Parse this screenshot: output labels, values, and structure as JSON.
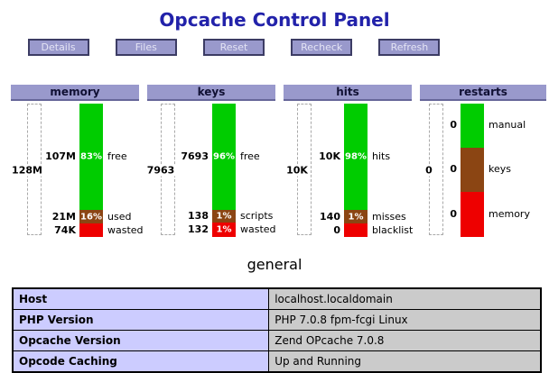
{
  "title": "Opcache Control Panel",
  "toolbar": {
    "buttons": [
      "Details",
      "Files",
      "Reset",
      "Recheck",
      "Refresh"
    ]
  },
  "colors": {
    "green": "#00cc00",
    "brown": "#8b4513",
    "red": "#ee0000",
    "panel_purple": "#9999cc",
    "title_blue": "#2222aa",
    "table_label_bg": "#ccccff",
    "table_value_bg": "#cbcbcb"
  },
  "chart_data": [
    {
      "type": "bar",
      "title": "memory",
      "scale_total": "128M",
      "segments": [
        {
          "value": "107M",
          "pct": "83%",
          "label": "free",
          "color": "green",
          "height_pct": 80
        },
        {
          "value": "21M",
          "pct": "16%",
          "label": "used",
          "color": "brown",
          "height_pct": 10
        },
        {
          "value": "74K",
          "pct": "",
          "label": "wasted",
          "color": "red",
          "height_pct": 10
        }
      ]
    },
    {
      "type": "bar",
      "title": "keys",
      "scale_total": "7963",
      "segments": [
        {
          "value": "7693",
          "pct": "96%",
          "label": "free",
          "color": "green",
          "height_pct": 80
        },
        {
          "value": "138",
          "pct": "1%",
          "label": "scripts",
          "color": "brown",
          "height_pct": 9
        },
        {
          "value": "132",
          "pct": "1%",
          "label": "wasted",
          "color": "red",
          "height_pct": 11
        }
      ]
    },
    {
      "type": "bar",
      "title": "hits",
      "scale_total": "10K",
      "segments": [
        {
          "value": "10K",
          "pct": "98%",
          "label": "hits",
          "color": "green",
          "height_pct": 80
        },
        {
          "value": "140",
          "pct": "1%",
          "label": "misses",
          "color": "brown",
          "height_pct": 10
        },
        {
          "value": "0",
          "pct": "",
          "label": "blacklist",
          "color": "red",
          "height_pct": 10
        }
      ]
    },
    {
      "type": "bar",
      "title": "restarts",
      "scale_total": "0",
      "segments": [
        {
          "value": "0",
          "pct": "",
          "label": "manual",
          "color": "green",
          "height_pct": 33
        },
        {
          "value": "0",
          "pct": "",
          "label": "keys",
          "color": "brown",
          "height_pct": 33
        },
        {
          "value": "0",
          "pct": "",
          "label": "memory",
          "color": "red",
          "height_pct": 34
        }
      ]
    }
  ],
  "general": {
    "heading": "general",
    "rows": [
      {
        "label": "Host",
        "value": "localhost.localdomain"
      },
      {
        "label": "PHP Version",
        "value": "PHP 7.0.8 fpm-fcgi Linux"
      },
      {
        "label": "Opcache Version",
        "value": "Zend OPcache 7.0.8"
      },
      {
        "label": "Opcode Caching",
        "value": "Up and Running"
      }
    ]
  }
}
